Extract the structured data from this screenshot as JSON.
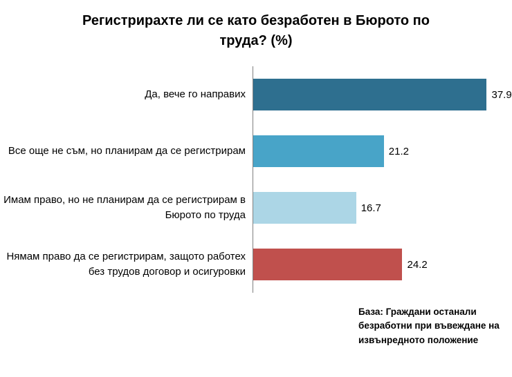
{
  "chart_data": {
    "type": "bar",
    "orientation": "horizontal",
    "title": "Регистрирахте ли се като безработен в Бюрото по труда? (%)",
    "categories": [
      "Да, вече го направих",
      "Все още не съм, но планирам да се регистрирам",
      "Имам право, но не планирам да се регистрирам в Бюрото по труда",
      "Нямам право да се регистрирам, защото работех без трудов договор и осигуровки"
    ],
    "values": [
      37.9,
      21.2,
      16.7,
      24.2
    ],
    "value_labels": [
      "37.9",
      "21.2",
      "16.7",
      "24.2"
    ],
    "colors": [
      "#2E6F8F",
      "#48A4C8",
      "#ACD6E6",
      "#C0504D"
    ],
    "xlim": [
      0,
      42
    ],
    "grid": false,
    "legend": "none"
  },
  "footer": {
    "text": "База: Граждани останали безработни при въвеждане на извънредното положение"
  }
}
